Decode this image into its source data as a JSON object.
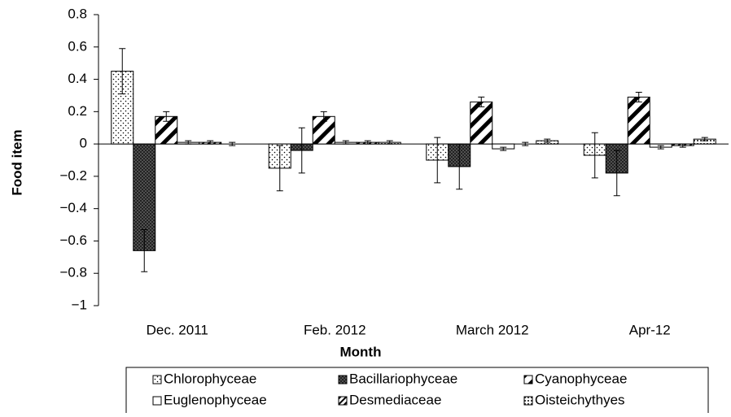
{
  "chart_data": {
    "type": "bar",
    "x_label": "Month",
    "y_label": "Food item",
    "categories": [
      "Dec. 2011",
      "Feb. 2012",
      "March 2012",
      "Apr-12"
    ],
    "series": [
      {
        "name": "Chlorophyceae",
        "values": [
          0.45,
          -0.15,
          -0.1,
          -0.07
        ],
        "errors": [
          0.14,
          0.14,
          0.14,
          0.14
        ]
      },
      {
        "name": "Bacillariophyceae",
        "values": [
          -0.66,
          -0.04,
          -0.14,
          -0.18
        ],
        "errors": [
          0.13,
          0.14,
          0.14,
          0.14
        ]
      },
      {
        "name": "Cyanophyceae",
        "values": [
          0.17,
          0.17,
          0.26,
          0.29
        ],
        "errors": [
          0.03,
          0.03,
          0.03,
          0.03
        ]
      },
      {
        "name": "Euglenophyceae",
        "values": [
          0.01,
          0.01,
          -0.03,
          -0.02
        ],
        "errors": [
          0.01,
          0.01,
          0.01,
          0.01
        ]
      },
      {
        "name": "Desmediaceae",
        "values": [
          0.01,
          0.01,
          0.0,
          -0.01
        ],
        "errors": [
          0.01,
          0.01,
          0.01,
          0.01
        ]
      },
      {
        "name": "Oisteichythyes",
        "values": [
          0.0,
          0.01,
          0.02,
          0.03
        ],
        "errors": [
          0.01,
          0.01,
          0.01,
          0.01
        ]
      }
    ],
    "ylim": [
      -1,
      0.8
    ],
    "yticks": [
      {
        "value": -1,
        "label": "−1"
      },
      {
        "value": -0.8,
        "label": "−0.8"
      },
      {
        "value": -0.6,
        "label": "−0.6"
      },
      {
        "value": -0.4,
        "label": "−0.4"
      },
      {
        "value": -0.2,
        "label": "−0.2"
      },
      0,
      0.2,
      0.4,
      0.6,
      0.8
    ]
  }
}
